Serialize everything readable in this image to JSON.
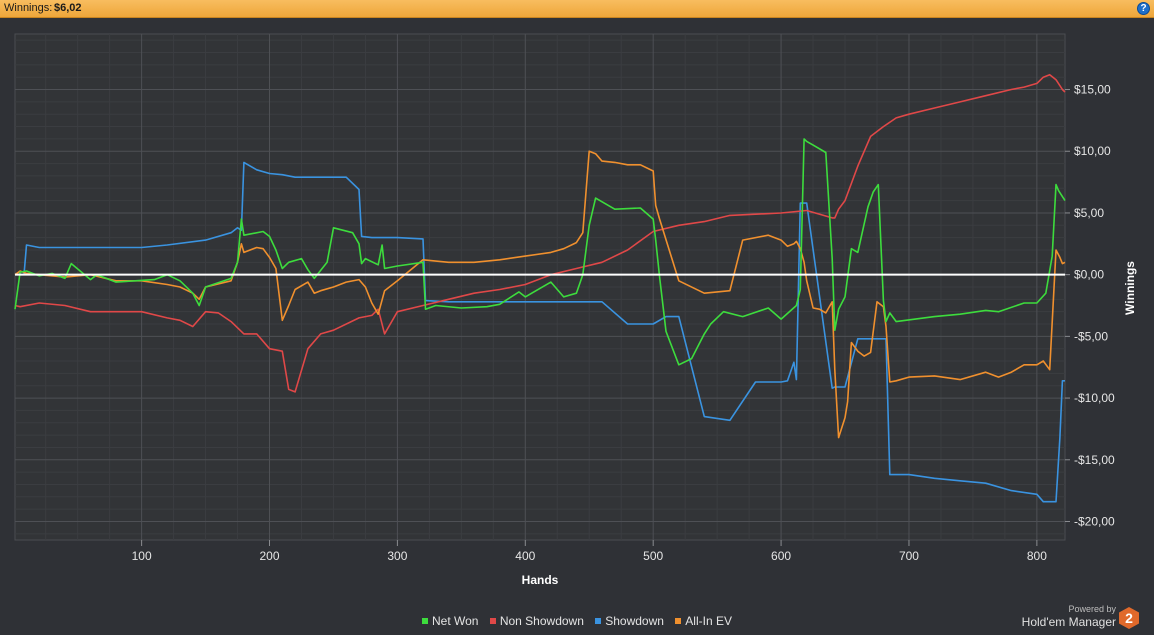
{
  "header": {
    "label": "Winnings:",
    "value": "$6,02",
    "help_icon": "?"
  },
  "colors": {
    "net_won": "#3ddc3d",
    "non_showdown": "#e04848",
    "showdown": "#3a93e0",
    "allin_ev": "#f0902e",
    "zero_line": "#ffffff",
    "header_bg": "#f5b04a"
  },
  "chart_data": {
    "type": "line",
    "xlabel": "Hands",
    "ylabel": "Winnings",
    "xlim": [
      1,
      822
    ],
    "ylim": [
      -21.5,
      19.5
    ],
    "x_ticks": [
      {
        "value": 100,
        "label": "100"
      },
      {
        "value": 200,
        "label": "200"
      },
      {
        "value": 300,
        "label": "300"
      },
      {
        "value": 400,
        "label": "400"
      },
      {
        "value": 500,
        "label": "500"
      },
      {
        "value": 600,
        "label": "600"
      },
      {
        "value": 700,
        "label": "700"
      },
      {
        "value": 800,
        "label": "800"
      }
    ],
    "y_ticks": [
      {
        "value": 15,
        "label": "$15,00"
      },
      {
        "value": 10,
        "label": "$10,00"
      },
      {
        "value": 5,
        "label": "$5,00"
      },
      {
        "value": 0,
        "label": "$0,00"
      },
      {
        "value": -5,
        "label": "-$5,00"
      },
      {
        "value": -10,
        "label": "-$10,00"
      },
      {
        "value": -15,
        "label": "-$15,00"
      },
      {
        "value": -20,
        "label": "-$20,00"
      }
    ],
    "grid": true,
    "legend_position": "bottom-center",
    "series": [
      {
        "name": "Net Won",
        "key": "net_won",
        "x": [
          1,
          5,
          10,
          20,
          30,
          40,
          45,
          60,
          65,
          80,
          95,
          110,
          120,
          130,
          140,
          145,
          150,
          170,
          175,
          178,
          180,
          195,
          200,
          205,
          210,
          215,
          225,
          230,
          235,
          245,
          250,
          265,
          270,
          272,
          275,
          285,
          288,
          290,
          300,
          320,
          322,
          330,
          350,
          370,
          380,
          395,
          400,
          405,
          420,
          430,
          440,
          445,
          450,
          455,
          470,
          490,
          500,
          502,
          505,
          510,
          520,
          530,
          540,
          545,
          555,
          570,
          590,
          600,
          612,
          615,
          618,
          620,
          625,
          635,
          640,
          642,
          645,
          650,
          655,
          660,
          668,
          672,
          676,
          680,
          682,
          685,
          690,
          720,
          740,
          760,
          770,
          790,
          800,
          807,
          812,
          815,
          817,
          822
        ],
        "y": [
          -2.8,
          0.2,
          0.3,
          -0.1,
          0.1,
          -0.3,
          0.9,
          -0.4,
          0.0,
          -0.6,
          -0.5,
          -0.4,
          0.0,
          -0.5,
          -1.5,
          -2.5,
          -1.0,
          -0.3,
          1.0,
          4.5,
          3.2,
          3.5,
          3.1,
          2.0,
          0.5,
          1.0,
          1.3,
          0.4,
          -0.3,
          1.0,
          3.8,
          3.4,
          2.5,
          0.9,
          1.3,
          0.8,
          2.4,
          0.5,
          0.7,
          1.0,
          -2.8,
          -2.5,
          -2.7,
          -2.6,
          -2.4,
          -1.4,
          -1.8,
          -1.5,
          -0.6,
          -1.8,
          -1.5,
          0.0,
          4.0,
          6.2,
          5.3,
          5.4,
          4.5,
          2.8,
          -0.2,
          -4.6,
          -7.3,
          -6.8,
          -4.8,
          -4.0,
          -3.0,
          -3.4,
          -2.7,
          -3.6,
          -2.5,
          -1.2,
          11.0,
          10.8,
          10.5,
          9.9,
          1.3,
          -4.5,
          -2.8,
          -1.8,
          2.1,
          1.8,
          5.5,
          6.7,
          7.3,
          -2.1,
          -3.8,
          -3.1,
          -3.8,
          -3.4,
          -3.2,
          -2.9,
          -3.0,
          -2.3,
          -2.3,
          -1.5,
          1.5,
          7.3,
          6.8,
          6.0
        ]
      },
      {
        "name": "Non Showdown",
        "key": "non_showdown",
        "x": [
          1,
          5,
          20,
          40,
          60,
          80,
          100,
          120,
          130,
          140,
          150,
          160,
          170,
          180,
          190,
          200,
          210,
          215,
          220,
          230,
          240,
          250,
          270,
          280,
          285,
          290,
          300,
          320,
          340,
          360,
          380,
          400,
          420,
          440,
          460,
          480,
          500,
          520,
          540,
          560,
          580,
          600,
          620,
          640,
          642,
          645,
          650,
          660,
          670,
          680,
          690,
          700,
          720,
          740,
          760,
          780,
          790,
          800,
          805,
          810,
          815,
          820,
          822
        ],
        "y": [
          -2.5,
          -2.6,
          -2.3,
          -2.5,
          -3.0,
          -3.0,
          -3.0,
          -3.5,
          -3.7,
          -4.2,
          -3.0,
          -3.1,
          -3.8,
          -4.8,
          -4.8,
          -6.0,
          -6.2,
          -9.3,
          -9.5,
          -6.0,
          -4.8,
          -4.5,
          -3.5,
          -3.3,
          -2.8,
          -4.8,
          -3.0,
          -2.5,
          -2.0,
          -1.5,
          -1.2,
          -0.8,
          0.0,
          0.5,
          1.0,
          2.0,
          3.5,
          4.0,
          4.3,
          4.8,
          4.9,
          5.0,
          5.2,
          4.6,
          4.6,
          5.3,
          6.0,
          8.8,
          11.2,
          12.0,
          12.7,
          13.0,
          13.5,
          14.0,
          14.5,
          15.0,
          15.2,
          15.5,
          16.0,
          16.2,
          15.8,
          15.0,
          14.8
        ]
      },
      {
        "name": "Showdown",
        "key": "showdown",
        "x": [
          1,
          8,
          10,
          20,
          50,
          100,
          120,
          150,
          170,
          175,
          178,
          180,
          190,
          200,
          210,
          220,
          230,
          240,
          260,
          270,
          272,
          280,
          300,
          320,
          322,
          340,
          360,
          400,
          420,
          440,
          450,
          460,
          480,
          490,
          500,
          510,
          520,
          540,
          560,
          580,
          600,
          605,
          610,
          612,
          615,
          618,
          620,
          640,
          642,
          645,
          650,
          660,
          680,
          682,
          685,
          690,
          700,
          720,
          740,
          760,
          780,
          800,
          805,
          810,
          815,
          818,
          820,
          822
        ],
        "y": [
          0.0,
          0.0,
          2.4,
          2.2,
          2.2,
          2.2,
          2.4,
          2.8,
          3.4,
          3.8,
          3.6,
          9.1,
          8.5,
          8.2,
          8.1,
          7.9,
          7.9,
          7.9,
          7.9,
          6.9,
          3.1,
          3.0,
          3.0,
          2.9,
          -2.1,
          -2.2,
          -2.2,
          -2.2,
          -2.2,
          -2.2,
          -2.2,
          -2.2,
          -4.0,
          -4.0,
          -4.0,
          -3.4,
          -3.4,
          -11.5,
          -11.8,
          -8.7,
          -8.7,
          -8.6,
          -7.1,
          -8.5,
          5.8,
          5.8,
          5.8,
          -9.2,
          -9.1,
          -9.1,
          -9.1,
          -5.2,
          -5.2,
          -5.2,
          -16.2,
          -16.2,
          -16.2,
          -16.5,
          -16.7,
          -16.9,
          -17.5,
          -17.8,
          -18.4,
          -18.4,
          -18.4,
          -13.2,
          -8.6,
          -8.6
        ]
      },
      {
        "name": "All-In EV",
        "key": "allin_ev",
        "x": [
          1,
          5,
          10,
          20,
          40,
          60,
          80,
          100,
          120,
          130,
          140,
          145,
          150,
          170,
          175,
          178,
          180,
          190,
          195,
          200,
          205,
          210,
          215,
          220,
          230,
          235,
          240,
          250,
          260,
          270,
          275,
          280,
          285,
          290,
          300,
          320,
          340,
          360,
          380,
          400,
          420,
          430,
          440,
          445,
          450,
          455,
          460,
          470,
          480,
          490,
          500,
          502,
          505,
          520,
          540,
          560,
          570,
          590,
          600,
          605,
          610,
          612,
          615,
          618,
          620,
          625,
          630,
          635,
          640,
          642,
          645,
          650,
          652,
          655,
          660,
          665,
          670,
          675,
          680,
          682,
          685,
          690,
          700,
          720,
          740,
          760,
          770,
          780,
          790,
          800,
          805,
          810,
          815,
          818,
          820,
          822
        ],
        "y": [
          0.0,
          0.3,
          0.1,
          0.0,
          -0.2,
          0.0,
          -0.5,
          -0.5,
          -0.8,
          -1.0,
          -1.5,
          -2.0,
          -1.0,
          -0.5,
          1.0,
          2.5,
          1.8,
          2.2,
          2.1,
          1.4,
          0.5,
          -3.7,
          -2.5,
          -1.2,
          -0.6,
          -1.5,
          -1.3,
          -1.0,
          -0.6,
          -0.4,
          -1.0,
          -2.3,
          -3.2,
          -1.3,
          -0.5,
          1.2,
          1.0,
          1.0,
          1.2,
          1.5,
          1.8,
          2.1,
          2.6,
          3.4,
          10.0,
          9.8,
          9.2,
          9.1,
          8.9,
          8.9,
          8.4,
          5.6,
          4.5,
          -0.5,
          -1.5,
          -1.3,
          2.8,
          3.2,
          2.8,
          2.3,
          2.5,
          2.7,
          2.1,
          1.0,
          -0.5,
          -2.7,
          -2.8,
          -3.1,
          -2.2,
          -7.7,
          -13.2,
          -11.6,
          -10.3,
          -5.5,
          -6.2,
          -6.6,
          -6.3,
          -2.2,
          -2.6,
          -4.2,
          -8.7,
          -8.6,
          -8.3,
          -8.2,
          -8.5,
          -7.9,
          -8.3,
          -7.9,
          -7.3,
          -7.3,
          -7.0,
          -7.7,
          2.0,
          1.4,
          0.9,
          1.0
        ]
      }
    ]
  },
  "legend": {
    "items": [
      {
        "label": "Net Won",
        "key": "net_won"
      },
      {
        "label": "Non Showdown",
        "key": "non_showdown"
      },
      {
        "label": "Showdown",
        "key": "showdown"
      },
      {
        "label": "All-In EV",
        "key": "allin_ev"
      }
    ]
  },
  "brand": {
    "powered_by": "Powered by",
    "name": "Hold'em Manager",
    "logo_icon": "hm2-logo-icon",
    "logo_text": "2"
  }
}
